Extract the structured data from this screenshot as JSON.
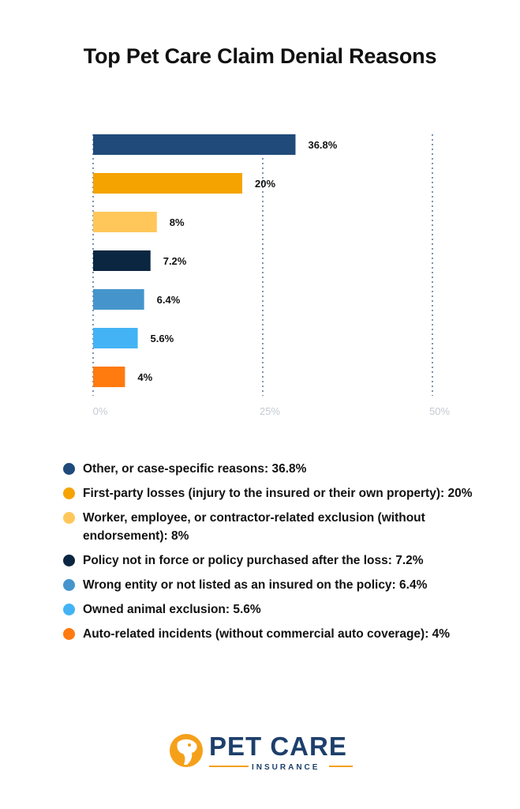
{
  "chart_data": {
    "type": "bar",
    "orientation": "horizontal",
    "title": "Top Pet Care Claim Denial Reasons",
    "categories": [
      "Other, or case-specific reasons",
      "First-party losses (injury to the insured or their own property)",
      "Worker, employee, or contractor-related exclusion (without endorsement)",
      "Policy not in force or policy purchased after the loss",
      "Wrong entity or not listed as an insured on the policy",
      "Owned animal exclusion",
      "Auto-related incidents (without commercial auto coverage)"
    ],
    "values": [
      36.8,
      20,
      8,
      7.2,
      6.4,
      5.6,
      4
    ],
    "value_labels": [
      "36.8%",
      "20%",
      "8%",
      "7.2%",
      "6.4%",
      "5.6%",
      "4%"
    ],
    "colors": [
      "#1f4a7a",
      "#f5a300",
      "#ffc75a",
      "#0b2640",
      "#4595cc",
      "#43b3f5",
      "#ff7a0f"
    ],
    "xlim": [
      0,
      50
    ],
    "xticks": [
      0,
      25,
      50
    ],
    "xtick_labels": [
      "0%",
      "25%",
      "50%"
    ],
    "grid": "vertical dotted",
    "legend_position": "bottom"
  },
  "legend": [
    "Other, or case-specific reasons: 36.8%",
    "First-party losses (injury to the insured or their own property): 20%",
    "Worker, employee, or contractor-related exclusion (without endorsement): 8%",
    "Policy not in force or policy purchased after the loss: 7.2%",
    "Wrong entity or not listed as an insured on the policy: 6.4%",
    "Owned animal exclusion: 5.6%",
    "Auto-related incidents (without commercial auto coverage): 4%"
  ],
  "logo": {
    "wordmark": "PET CARE",
    "subtitle": "INSURANCE",
    "brand_color": "#1d3f6b",
    "accent_color": "#f5a01a",
    "icon": "pet-head-logo-icon"
  }
}
